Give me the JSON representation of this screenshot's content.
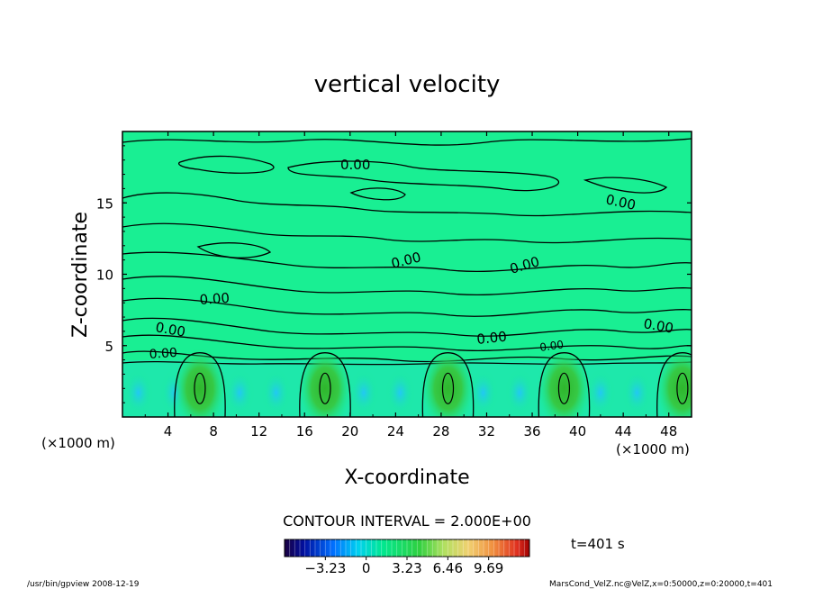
{
  "chart_data": {
    "type": "heatmap",
    "title": "vertical velocity",
    "xlabel": "X-coordinate",
    "ylabel": "Z-coordinate",
    "x_unit_left": "(×1000 m)",
    "x_unit_right": "(×1000 m)",
    "xlim": [
      0,
      50
    ],
    "ylim": [
      0,
      20
    ],
    "x_ticks": [
      "4",
      "8",
      "12",
      "16",
      "20",
      "24",
      "28",
      "32",
      "36",
      "40",
      "44",
      "48"
    ],
    "y_ticks": [
      "5",
      "10",
      "15"
    ],
    "contour_labels": [
      "0.00",
      "0.00",
      "0.00",
      "0.00",
      "0.00",
      "0.00",
      "0.00",
      "0.00",
      "0.00",
      "0.00"
    ],
    "contour_interval_text": "CONTOUR INTERVAL = 2.000E+00",
    "time_text": "t=401 s",
    "colorbar_ticks": [
      "−3.23",
      "0",
      "3.23",
      "6.46",
      "9.69"
    ],
    "colorbar_range": [
      -6.46,
      12.92
    ],
    "updraft_centers_x": [
      6.8,
      17.8,
      28.6,
      38.8,
      49.2
    ],
    "background_color": "#19ef93",
    "footer_left": "/usr/bin/gpview  2008-12-19",
    "footer_right": "MarsCond_VelZ.nc@VelZ,x=0:50000,z=0:20000,t=401"
  }
}
